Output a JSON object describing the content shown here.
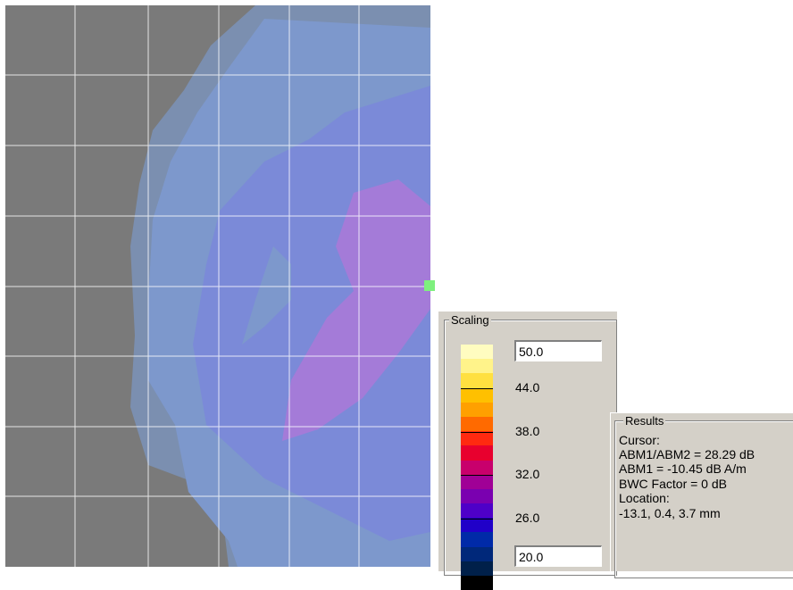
{
  "scaling": {
    "title": "Scaling",
    "max_value": "50.0",
    "min_value": "20.0",
    "tick_labels": [
      "44.0",
      "38.0",
      "32.0",
      "26.0"
    ],
    "band_colors": [
      "#fffcc0",
      "#fff38a",
      "#ffe040",
      "#ffc000",
      "#ffa000",
      "#ff6a00",
      "#ff2a10",
      "#e8002e",
      "#c8006c",
      "#a00096",
      "#7a00b0",
      "#4e00c8",
      "#2000c8",
      "#002aa8",
      "#00287a",
      "#00204a",
      "#000000"
    ]
  },
  "results": {
    "title": "Results",
    "cursor_label": "Cursor:",
    "abm_ratio": "ABM1/ABM2 = 28.29 dB",
    "abm1": "ABM1 = -10.45 dB A/m",
    "bwc": "BWC Factor = 0 dB",
    "location_label": "Location:",
    "location_value": "-13.1, 0.4, 3.7 mm"
  },
  "plot": {
    "background_color": "#7a7a7a",
    "contour_colors": [
      "#7b8fb0",
      "#7d98cc",
      "#7b8ad8",
      "#a47bd8"
    ],
    "marker_color": "#7ef07e"
  }
}
